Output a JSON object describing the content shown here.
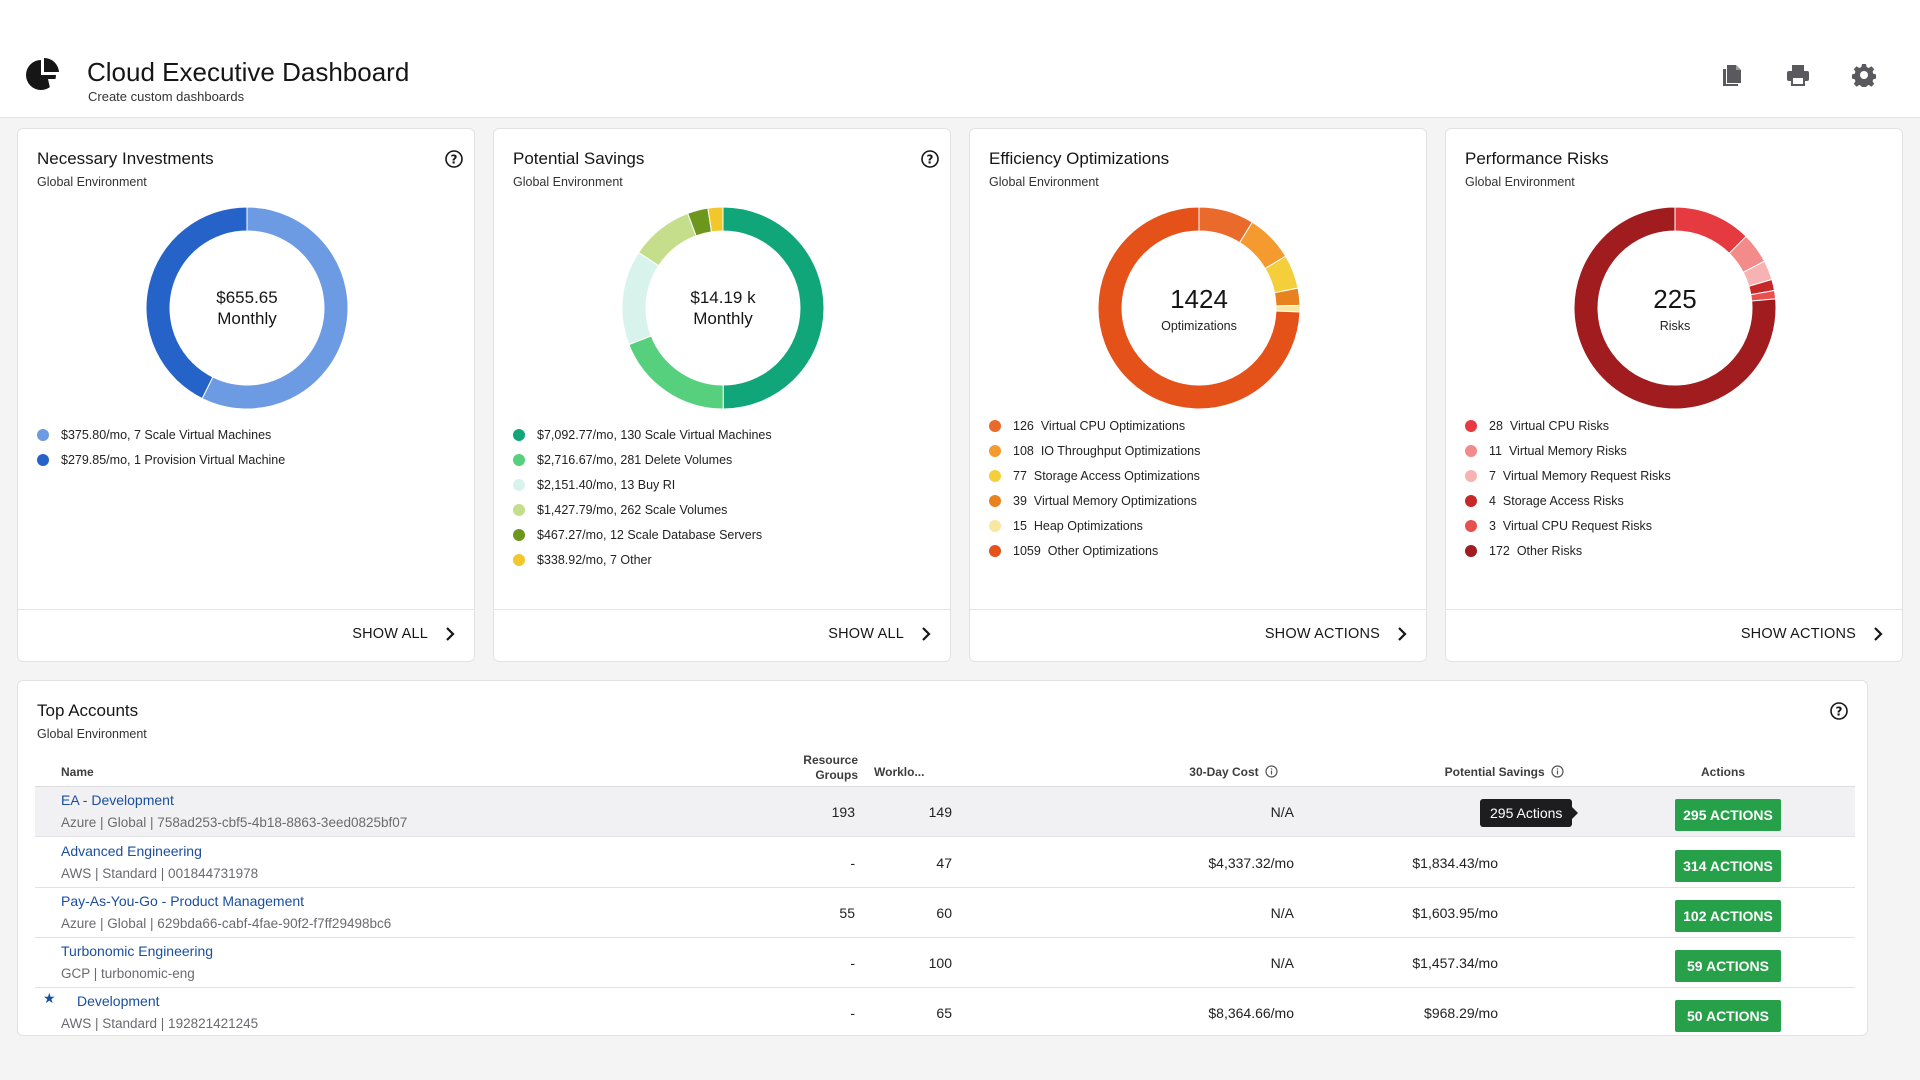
{
  "header": {
    "title": "Cloud Executive Dashboard",
    "subtitle": "Create custom dashboards",
    "icons": [
      "copy-icon",
      "print-icon",
      "settings-gear-icon"
    ]
  },
  "widgets": [
    {
      "title": "Necessary Investments",
      "subtitle": "Global Environment",
      "center_line1": "$655.65",
      "center_line2": "Monthly",
      "has_help": true,
      "footer_link": "SHOW ALL",
      "legend": [
        {
          "label": "$375.80/mo, 7 Scale Virtual Machines",
          "value": 375.8,
          "color": "#6c9be3"
        },
        {
          "label": "$279.85/mo, 1 Provision Virtual Machine",
          "value": 279.85,
          "color": "#2563c9"
        }
      ]
    },
    {
      "title": "Potential Savings",
      "subtitle": "Global Environment",
      "center_line1": "$14.19 k",
      "center_line2": "Monthly",
      "has_help": true,
      "footer_link": "SHOW ALL",
      "legend": [
        {
          "label": "$7,092.77/mo, 130 Scale Virtual Machines",
          "value": 7092.77,
          "color": "#10a67a"
        },
        {
          "label": "$2,716.67/mo, 281 Delete Volumes",
          "value": 2716.67,
          "color": "#56d07d"
        },
        {
          "label": "$2,151.40/mo, 13 Buy RI",
          "value": 2151.4,
          "color": "#d8f3ec"
        },
        {
          "label": "$1,427.79/mo, 262 Scale Volumes",
          "value": 1427.79,
          "color": "#c4de8c"
        },
        {
          "label": "$467.27/mo, 12 Scale Database Servers",
          "value": 467.27,
          "color": "#6d961d"
        },
        {
          "label": "$338.92/mo, 7 Other",
          "value": 338.92,
          "color": "#f2c72c"
        }
      ]
    },
    {
      "title": "Efficiency Optimizations",
      "subtitle": "Global Environment",
      "center_number": "1424",
      "center_unit": "Optimizations",
      "has_help": false,
      "footer_link": "SHOW ACTIONS",
      "legend": [
        {
          "count": "126",
          "label": "Virtual CPU Optimizations",
          "value": 126,
          "color": "#ea6a2c"
        },
        {
          "count": "108",
          "label": "IO Throughput Optimizations",
          "value": 108,
          "color": "#f59a2f"
        },
        {
          "count": "77",
          "label": "Storage Access Optimizations",
          "value": 77,
          "color": "#f4cf3b"
        },
        {
          "count": "39",
          "label": "Virtual Memory Optimizations",
          "value": 39,
          "color": "#e8821e"
        },
        {
          "count": "15",
          "label": "Heap Optimizations",
          "value": 15,
          "color": "#f7e7a0"
        },
        {
          "count": "1059",
          "label": "Other Optimizations",
          "value": 1059,
          "color": "#e4521a"
        }
      ]
    },
    {
      "title": "Performance Risks",
      "subtitle": "Global Environment",
      "center_number": "225",
      "center_unit": "Risks",
      "has_help": false,
      "footer_link": "SHOW ACTIONS",
      "legend": [
        {
          "count": "28",
          "label": "Virtual CPU Risks",
          "value": 28,
          "color": "#e53a40"
        },
        {
          "count": "11",
          "label": "Virtual Memory Risks",
          "value": 11,
          "color": "#f28b8a"
        },
        {
          "count": "7",
          "label": "Virtual Memory Request Risks",
          "value": 7,
          "color": "#f7b3b3"
        },
        {
          "count": "4",
          "label": "Storage Access Risks",
          "value": 4,
          "color": "#c62828"
        },
        {
          "count": "3",
          "label": "Virtual CPU Request Risks",
          "value": 3,
          "color": "#e85050"
        },
        {
          "count": "172",
          "label": "Other Risks",
          "value": 172,
          "color": "#a01c1f"
        }
      ]
    }
  ],
  "top_accounts": {
    "title": "Top Accounts",
    "subtitle": "Global Environment",
    "columns": {
      "name": "Name",
      "resource_groups_1": "Resource",
      "resource_groups_2": "Groups",
      "workloads": "Worklo...",
      "cost": "30-Day Cost",
      "savings": "Potential Savings",
      "actions": "Actions"
    },
    "tooltip": "295 Actions",
    "rows": [
      {
        "name": "EA - Development",
        "meta": "Azure | Global | 758ad253-cbf5-4b18-8863-3eed0825bf07",
        "resource_groups": "193",
        "workloads": "149",
        "cost": "N/A",
        "savings": "$",
        "actions": "295 ACTIONS",
        "highlighted": true,
        "starred": false
      },
      {
        "name": "Advanced Engineering",
        "meta": "AWS | Standard | 001844731978",
        "resource_groups": "-",
        "workloads": "47",
        "cost": "$4,337.32/mo",
        "savings": "$1,834.43/mo",
        "actions": "314 ACTIONS",
        "highlighted": false,
        "starred": false
      },
      {
        "name": "Pay-As-You-Go - Product Management",
        "meta": "Azure | Global | 629bda66-cabf-4fae-90f2-f7ff29498bc6",
        "resource_groups": "55",
        "workloads": "60",
        "cost": "N/A",
        "savings": "$1,603.95/mo",
        "actions": "102 ACTIONS",
        "highlighted": false,
        "starred": false
      },
      {
        "name": "Turbonomic Engineering",
        "meta": "GCP | turbonomic-eng",
        "resource_groups": "-",
        "workloads": "100",
        "cost": "N/A",
        "savings": "$1,457.34/mo",
        "actions": "59 ACTIONS",
        "highlighted": false,
        "starred": false
      },
      {
        "name": "Development",
        "meta": "AWS | Standard | 192821421245",
        "resource_groups": "-",
        "workloads": "65",
        "cost": "$8,364.66/mo",
        "savings": "$968.29/mo",
        "actions": "50 ACTIONS",
        "highlighted": false,
        "starred": true
      }
    ]
  }
}
